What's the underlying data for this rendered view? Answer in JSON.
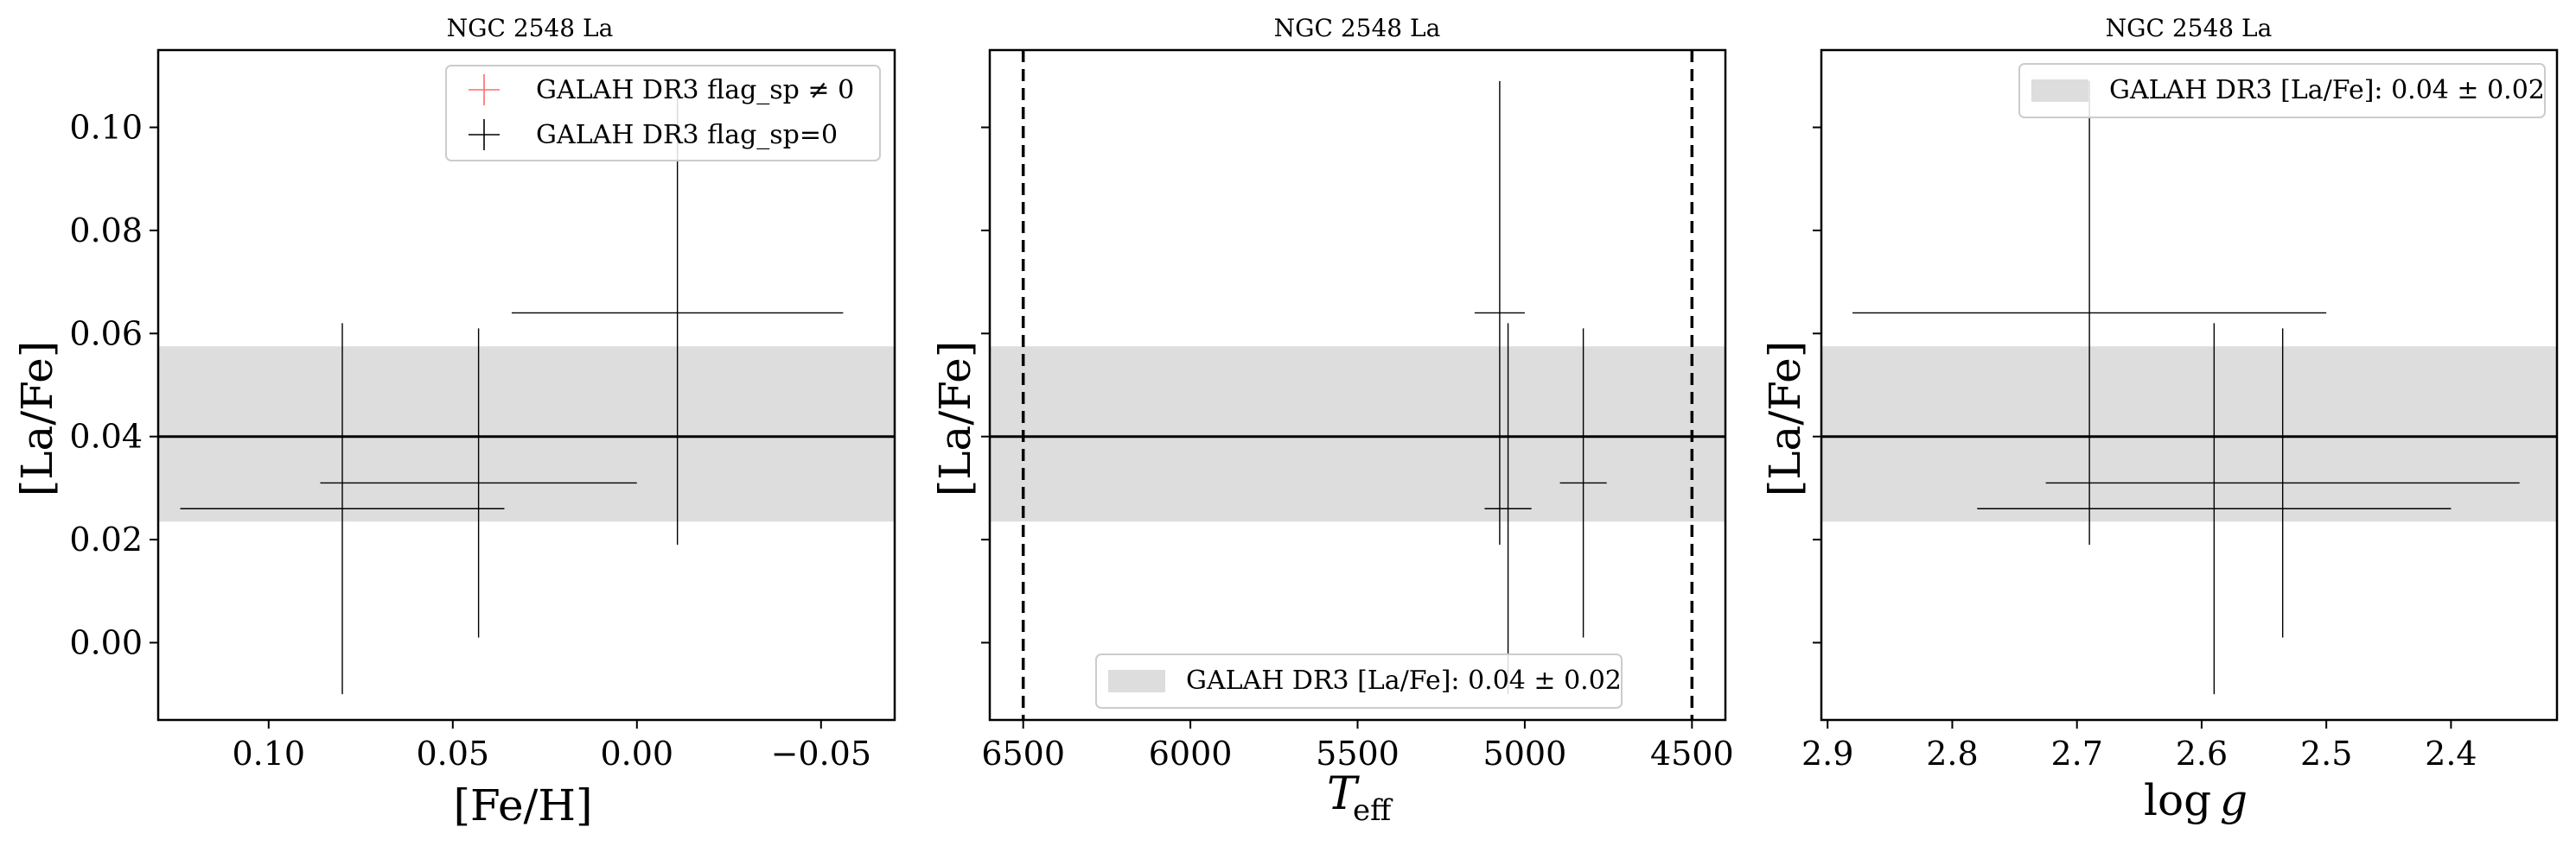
{
  "chart_data": [
    {
      "type": "scatter",
      "title": "NGC 2548 La",
      "xlabel": "[Fe/H]",
      "ylabel": "[La/Fe]",
      "xlim": [
        0.13,
        -0.07
      ],
      "ylim": [
        -0.015,
        0.115
      ],
      "x_inverted": true,
      "xticks": [
        0.1,
        0.05,
        0.0,
        -0.05
      ],
      "xtick_labels": [
        "0.10",
        "0.05",
        "0.00",
        "−0.05"
      ],
      "yticks": [
        0.0,
        0.02,
        0.04,
        0.06,
        0.08,
        0.1
      ],
      "ytick_labels": [
        "0.00",
        "0.02",
        "0.04",
        "0.06",
        "0.08",
        "0.10"
      ],
      "mean_line": 0.04,
      "band": [
        0.0235,
        0.0575
      ],
      "legend": {
        "position": "top-right",
        "entries": [
          {
            "label": "GALAH DR3 flag_sp ≠ 0",
            "color": "#ff6b6b",
            "marker": "+"
          },
          {
            "label": "GALAH DR3 flag_sp=0",
            "color": "#000000",
            "marker": "+"
          }
        ]
      },
      "series": [
        {
          "name": "GALAH DR3 flag_sp=0",
          "color": "#000000",
          "points": [
            {
              "x": 0.08,
              "y": 0.026,
              "xerr": 0.044,
              "yerr": 0.036
            },
            {
              "x": 0.043,
              "y": 0.031,
              "xerr": 0.043,
              "yerr": 0.03
            },
            {
              "x": -0.011,
              "y": 0.064,
              "xerr": 0.045,
              "yerr": 0.045
            }
          ]
        }
      ]
    },
    {
      "type": "scatter",
      "title": "NGC 2548 La",
      "xlabel": "T_eff",
      "ylabel": "[La/Fe]",
      "xlim": [
        6600,
        4400
      ],
      "ylim": [
        -0.015,
        0.115
      ],
      "x_inverted": true,
      "xticks": [
        6500,
        6000,
        5500,
        5000,
        4500
      ],
      "xtick_labels": [
        "6500",
        "6000",
        "5500",
        "5000",
        "4500"
      ],
      "yticks": [
        0.0,
        0.02,
        0.04,
        0.06,
        0.08,
        0.1
      ],
      "vlines": [
        6500,
        4500
      ],
      "mean_line": 0.04,
      "band": [
        0.0235,
        0.0575
      ],
      "legend": {
        "position": "bottom-center",
        "entries": [
          {
            "label": "GALAH DR3 [La/Fe]: 0.04 ± 0.02",
            "color": "#dddddd",
            "marker": "patch"
          }
        ]
      },
      "series": [
        {
          "name": "GALAH DR3 flag_sp=0",
          "color": "#000000",
          "points": [
            {
              "x": 5075,
              "y": 0.064,
              "xerr": 75,
              "yerr": 0.045
            },
            {
              "x": 5050,
              "y": 0.026,
              "xerr": 70,
              "yerr": 0.036
            },
            {
              "x": 4825,
              "y": 0.031,
              "xerr": 70,
              "yerr": 0.03
            }
          ]
        }
      ]
    },
    {
      "type": "scatter",
      "title": "NGC 2548 La",
      "xlabel": "log g",
      "ylabel": "[La/Fe]",
      "xlim": [
        2.905,
        2.315
      ],
      "ylim": [
        -0.015,
        0.115
      ],
      "x_inverted": true,
      "xticks": [
        2.9,
        2.8,
        2.7,
        2.6,
        2.5,
        2.4
      ],
      "xtick_labels": [
        "2.9",
        "2.8",
        "2.7",
        "2.6",
        "2.5",
        "2.4"
      ],
      "yticks": [
        0.0,
        0.02,
        0.04,
        0.06,
        0.08,
        0.1
      ],
      "mean_line": 0.04,
      "band": [
        0.0235,
        0.0575
      ],
      "legend": {
        "position": "top-right",
        "entries": [
          {
            "label": "GALAH DR3 [La/Fe]: 0.04 ± 0.02",
            "color": "#dddddd",
            "marker": "patch"
          }
        ]
      },
      "series": [
        {
          "name": "GALAH DR3 flag_sp=0",
          "color": "#000000",
          "points": [
            {
              "x": 2.69,
              "y": 0.064,
              "xerr": 0.19,
              "yerr": 0.045
            },
            {
              "x": 2.59,
              "y": 0.026,
              "xerr": 0.19,
              "yerr": 0.036
            },
            {
              "x": 2.535,
              "y": 0.031,
              "xerr": 0.19,
              "yerr": 0.03
            }
          ]
        }
      ]
    }
  ]
}
